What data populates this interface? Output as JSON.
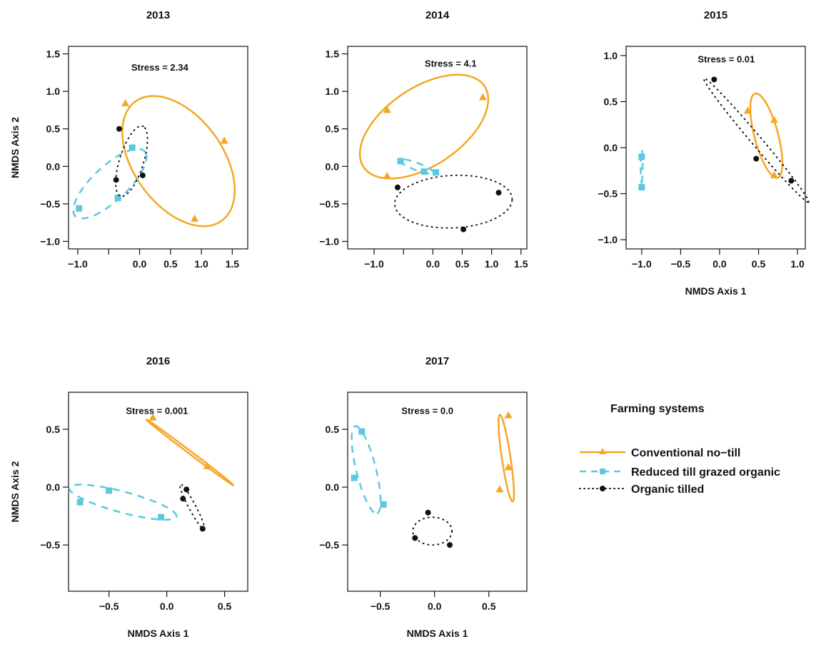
{
  "colors": {
    "conventional": "#F5A623",
    "reduced": "#5BC8E0",
    "organic": "#111111"
  },
  "legend": {
    "title": "Farming systems",
    "position": "right of bottom row",
    "entries": [
      {
        "key": "conventional",
        "label": "Conventional no−till",
        "line": "solid",
        "marker": "triangle"
      },
      {
        "key": "reduced",
        "label": "Reduced till grazed organic",
        "line": "dashed",
        "marker": "square"
      },
      {
        "key": "organic",
        "label": "Organic tilled",
        "line": "dotted",
        "marker": "circle"
      }
    ]
  },
  "chart_data": [
    {
      "type": "scatter",
      "title": "2013",
      "xlabel": "",
      "ylabel": "NMDS Axis 2",
      "stress_label": "Stress = 2.34",
      "xlim": [
        -1.15,
        1.75
      ],
      "ylim": [
        -1.1,
        1.6
      ],
      "xticks": [
        -1.0,
        -0.5,
        0.0,
        0.5,
        1.0,
        1.5
      ],
      "xtick_labels": [
        "−1.0",
        "",
        "0.0",
        "0.5",
        "1.0",
        "1.5"
      ],
      "yticks": [
        -1.0,
        -0.5,
        0.0,
        0.5,
        1.0,
        1.5
      ],
      "ytick_labels": [
        "−1.0",
        "−0.5",
        "0.0",
        "0.5",
        "1.0",
        "1.5"
      ],
      "series": [
        {
          "key": "conventional",
          "points": [
            [
              -0.23,
              0.84
            ],
            [
              1.37,
              0.34
            ],
            [
              0.89,
              -0.7
            ]
          ],
          "ellipse": {
            "cx": 0.63,
            "cy": 0.07,
            "a": 1.07,
            "b": 0.66,
            "angle": -42
          }
        },
        {
          "key": "reduced",
          "points": [
            [
              -0.98,
              -0.56
            ],
            [
              -0.35,
              -0.42
            ],
            [
              -0.12,
              0.25
            ]
          ],
          "ellipse": {
            "cx": -0.48,
            "cy": -0.23,
            "a": 0.71,
            "b": 0.25,
            "angle": 36
          }
        },
        {
          "key": "organic",
          "points": [
            [
              -0.33,
              0.5
            ],
            [
              -0.38,
              -0.18
            ],
            [
              0.05,
              -0.12
            ]
          ],
          "ellipse": {
            "cx": -0.13,
            "cy": 0.07,
            "a": 0.5,
            "b": 0.19,
            "angle": 68
          }
        }
      ]
    },
    {
      "type": "scatter",
      "title": "2014",
      "xlabel": "",
      "ylabel": "",
      "stress_label": "Stress = 4.1",
      "xlim": [
        -1.45,
        1.6
      ],
      "ylim": [
        -1.1,
        1.6
      ],
      "xticks": [
        -1.0,
        -0.5,
        0.0,
        0.5,
        1.0,
        1.5
      ],
      "xtick_labels": [
        "−1.0",
        "",
        "0.0",
        "0.5",
        "1.0",
        "1.5"
      ],
      "yticks": [
        -1.0,
        -0.5,
        0.0,
        0.5,
        1.0,
        1.5
      ],
      "ytick_labels": [
        "−1.0",
        "−0.5",
        "0.0",
        "0.5",
        "1.0",
        "1.5"
      ],
      "series": [
        {
          "key": "conventional",
          "points": [
            [
              -0.78,
              0.75
            ],
            [
              0.85,
              0.92
            ],
            [
              -0.78,
              -0.13
            ]
          ],
          "ellipse": {
            "cx": -0.15,
            "cy": 0.53,
            "a": 1.17,
            "b": 0.55,
            "angle": 24
          }
        },
        {
          "key": "reduced",
          "points": [
            [
              -0.55,
              0.07
            ],
            [
              -0.15,
              -0.07
            ],
            [
              0.05,
              -0.08
            ]
          ],
          "ellipse": {
            "cx": -0.28,
            "cy": 0.0,
            "a": 0.3,
            "b": 0.05,
            "angle": -16
          }
        },
        {
          "key": "organic",
          "points": [
            [
              -0.6,
              -0.28
            ],
            [
              0.52,
              -0.84
            ],
            [
              1.12,
              -0.35
            ]
          ],
          "ellipse": {
            "cx": 0.35,
            "cy": -0.47,
            "a": 1.0,
            "b": 0.35,
            "angle": 2
          }
        }
      ]
    },
    {
      "type": "scatter",
      "title": "2015",
      "xlabel": "NMDS Axis 1",
      "ylabel": "",
      "stress_label": "Stress = 0.01",
      "xlim": [
        -1.2,
        1.1
      ],
      "ylim": [
        -1.1,
        1.1
      ],
      "xticks": [
        -1.0,
        -0.5,
        0.0,
        0.5,
        1.0
      ],
      "xtick_labels": [
        "−1.0",
        "−0.5",
        "0.0",
        "0.5",
        "1.0"
      ],
      "yticks": [
        -1.0,
        -0.5,
        0.0,
        0.5,
        1.0
      ],
      "ytick_labels": [
        "−1.0",
        "−0.5",
        "0.0",
        "0.5",
        "1.0"
      ],
      "series": [
        {
          "key": "conventional",
          "points": [
            [
              0.36,
              0.4
            ],
            [
              0.7,
              0.3
            ],
            [
              0.7,
              -0.3
            ]
          ],
          "ellipse": {
            "cx": 0.6,
            "cy": 0.13,
            "a": 0.48,
            "b": 0.15,
            "angle": -72
          }
        },
        {
          "key": "reduced",
          "points": [
            [
              -1.0,
              -0.1
            ],
            [
              -1.0,
              -0.43
            ]
          ],
          "ellipse": {
            "cx": -1.0,
            "cy": -0.2,
            "a": 0.18,
            "b": 0.012,
            "angle": -90
          }
        },
        {
          "key": "organic",
          "points": [
            [
              -0.07,
              0.74
            ],
            [
              0.47,
              -0.12
            ],
            [
              0.92,
              -0.36
            ]
          ],
          "ellipse": {
            "cx": 0.47,
            "cy": 0.08,
            "a": 0.95,
            "b": 0.06,
            "angle": -45
          }
        }
      ]
    },
    {
      "type": "scatter",
      "title": "2016",
      "xlabel": "NMDS Axis 1",
      "ylabel": "NMDS Axis 2",
      "stress_label": "Stress = 0.001",
      "xlim": [
        -0.85,
        0.7
      ],
      "ylim": [
        -0.9,
        0.82
      ],
      "xticks": [
        -0.5,
        0.0,
        0.5
      ],
      "xtick_labels": [
        "−0.5",
        "0.0",
        "0.5"
      ],
      "yticks": [
        -0.5,
        0.0,
        0.5
      ],
      "ytick_labels": [
        "−0.5",
        "0.0",
        "0.5"
      ],
      "series": [
        {
          "key": "conventional",
          "points": [
            [
              -0.12,
              0.6
            ],
            [
              0.35,
              0.18
            ]
          ],
          "ellipse": {
            "cx": 0.2,
            "cy": 0.3,
            "a": 0.47,
            "b": 0.012,
            "angle": -37
          }
        },
        {
          "key": "reduced",
          "points": [
            [
              -0.75,
              -0.13
            ],
            [
              -0.5,
              -0.03
            ],
            [
              -0.05,
              -0.26
            ]
          ],
          "ellipse": {
            "cx": -0.38,
            "cy": -0.13,
            "a": 0.48,
            "b": 0.09,
            "angle": -15
          }
        },
        {
          "key": "organic",
          "points": [
            [
              0.17,
              -0.02
            ],
            [
              0.14,
              -0.1
            ],
            [
              0.31,
              -0.36
            ]
          ],
          "ellipse": {
            "cx": 0.22,
            "cy": -0.17,
            "a": 0.22,
            "b": 0.03,
            "angle": -62
          }
        }
      ]
    },
    {
      "type": "scatter",
      "title": "2017",
      "xlabel": "NMDS Axis 1",
      "ylabel": "",
      "stress_label": "Stress = 0.0",
      "xlim": [
        -0.8,
        0.85
      ],
      "ylim": [
        -0.9,
        0.82
      ],
      "xticks": [
        -0.5,
        0.0,
        0.5
      ],
      "xtick_labels": [
        "−0.5",
        "0.0",
        "0.5"
      ],
      "yticks": [
        -0.5,
        0.0,
        0.5
      ],
      "ytick_labels": [
        "−0.5",
        "0.0",
        "0.5"
      ],
      "series": [
        {
          "key": "conventional",
          "points": [
            [
              0.68,
              0.62
            ],
            [
              0.68,
              0.17
            ],
            [
              0.6,
              -0.02
            ]
          ],
          "ellipse": {
            "cx": 0.66,
            "cy": 0.25,
            "a": 0.38,
            "b": 0.04,
            "angle": -81
          }
        },
        {
          "key": "reduced",
          "points": [
            [
              -0.67,
              0.48
            ],
            [
              -0.74,
              0.08
            ],
            [
              -0.47,
              -0.15
            ]
          ],
          "ellipse": {
            "cx": -0.63,
            "cy": 0.15,
            "a": 0.39,
            "b": 0.09,
            "angle": -75
          }
        },
        {
          "key": "organic",
          "points": [
            [
              -0.06,
              -0.22
            ],
            [
              -0.18,
              -0.44
            ],
            [
              0.14,
              -0.5
            ]
          ],
          "ellipse": {
            "cx": -0.02,
            "cy": -0.38,
            "a": 0.18,
            "b": 0.12,
            "angle": 0
          }
        }
      ]
    }
  ]
}
